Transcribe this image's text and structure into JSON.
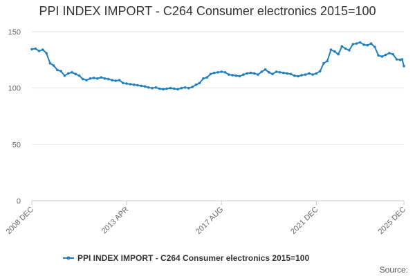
{
  "chart_data": {
    "type": "line",
    "title": "PPI INDEX IMPORT - C264 Consumer electronics 2015=100",
    "xlabel": "",
    "ylabel": "",
    "ylim": [
      0,
      150
    ],
    "y_ticks": [
      0,
      50,
      100,
      150
    ],
    "x_tick_labels": [
      "2008 DEC",
      "2013 APR",
      "2017 AUG",
      "2021 DEC",
      "2025 DEC"
    ],
    "x_tick_dates": [
      "2008-12",
      "2013-04",
      "2017-08",
      "2021-12",
      "2025-12"
    ],
    "grid": true,
    "legend_position": "bottom",
    "color": "#1f7fbf",
    "series": [
      {
        "name": "PPI INDEX IMPORT - C264 Consumer electronics 2015=100",
        "points": [
          [
            "2008-12",
            134.5
          ],
          [
            "2009-02",
            135.0
          ],
          [
            "2009-04",
            133.0
          ],
          [
            "2009-06",
            134.0
          ],
          [
            "2009-08",
            131.0
          ],
          [
            "2009-10",
            122.0
          ],
          [
            "2009-12",
            120.0
          ],
          [
            "2010-02",
            116.0
          ],
          [
            "2010-04",
            115.0
          ],
          [
            "2010-06",
            111.0
          ],
          [
            "2010-08",
            113.0
          ],
          [
            "2010-10",
            114.0
          ],
          [
            "2010-12",
            112.5
          ],
          [
            "2011-02",
            111.0
          ],
          [
            "2011-04",
            108.0
          ],
          [
            "2011-06",
            107.0
          ],
          [
            "2011-08",
            108.5
          ],
          [
            "2011-10",
            109.0
          ],
          [
            "2011-12",
            108.5
          ],
          [
            "2012-02",
            109.5
          ],
          [
            "2012-04",
            108.5
          ],
          [
            "2012-06",
            108.0
          ],
          [
            "2012-08",
            107.0
          ],
          [
            "2012-10",
            106.5
          ],
          [
            "2012-12",
            107.0
          ],
          [
            "2013-02",
            104.5
          ],
          [
            "2013-04",
            104.0
          ],
          [
            "2013-06",
            103.5
          ],
          [
            "2013-08",
            103.0
          ],
          [
            "2013-10",
            102.5
          ],
          [
            "2013-12",
            102.0
          ],
          [
            "2014-02",
            101.5
          ],
          [
            "2014-04",
            100.5
          ],
          [
            "2014-06",
            100.0
          ],
          [
            "2014-08",
            100.5
          ],
          [
            "2014-10",
            99.5
          ],
          [
            "2014-12",
            99.0
          ],
          [
            "2015-02",
            99.5
          ],
          [
            "2015-04",
            100.0
          ],
          [
            "2015-06",
            99.5
          ],
          [
            "2015-08",
            99.0
          ],
          [
            "2015-10",
            100.0
          ],
          [
            "2015-12",
            100.5
          ],
          [
            "2016-02",
            100.0
          ],
          [
            "2016-04",
            101.0
          ],
          [
            "2016-06",
            103.0
          ],
          [
            "2016-08",
            104.5
          ],
          [
            "2016-10",
            108.5
          ],
          [
            "2016-12",
            109.5
          ],
          [
            "2017-02",
            112.5
          ],
          [
            "2017-04",
            113.5
          ],
          [
            "2017-06",
            114.0
          ],
          [
            "2017-08",
            114.5
          ],
          [
            "2017-10",
            114.0
          ],
          [
            "2017-12",
            112.0
          ],
          [
            "2018-02",
            111.5
          ],
          [
            "2018-04",
            111.0
          ],
          [
            "2018-06",
            110.5
          ],
          [
            "2018-08",
            112.0
          ],
          [
            "2018-10",
            113.0
          ],
          [
            "2018-12",
            113.5
          ],
          [
            "2019-02",
            113.0
          ],
          [
            "2019-04",
            112.0
          ],
          [
            "2019-06",
            114.5
          ],
          [
            "2019-08",
            116.5
          ],
          [
            "2019-10",
            114.0
          ],
          [
            "2019-12",
            112.5
          ],
          [
            "2020-02",
            114.5
          ],
          [
            "2020-04",
            114.0
          ],
          [
            "2020-06",
            113.5
          ],
          [
            "2020-08",
            113.0
          ],
          [
            "2020-10",
            112.5
          ],
          [
            "2020-12",
            111.0
          ],
          [
            "2021-02",
            110.5
          ],
          [
            "2021-04",
            111.5
          ],
          [
            "2021-06",
            112.0
          ],
          [
            "2021-08",
            113.0
          ],
          [
            "2021-10",
            112.0
          ],
          [
            "2021-12",
            113.0
          ],
          [
            "2022-02",
            115.0
          ],
          [
            "2022-04",
            122.0
          ],
          [
            "2022-06",
            124.0
          ],
          [
            "2022-08",
            134.0
          ],
          [
            "2022-10",
            132.5
          ],
          [
            "2022-12",
            130.0
          ],
          [
            "2023-02",
            137.0
          ],
          [
            "2023-04",
            135.0
          ],
          [
            "2023-06",
            133.5
          ],
          [
            "2023-08",
            139.0
          ],
          [
            "2023-10",
            139.5
          ],
          [
            "2023-12",
            140.5
          ],
          [
            "2024-02",
            138.5
          ],
          [
            "2024-04",
            138.0
          ],
          [
            "2024-06",
            139.5
          ],
          [
            "2024-08",
            136.5
          ],
          [
            "2024-10",
            129.0
          ],
          [
            "2024-12",
            128.0
          ],
          [
            "2025-02",
            129.5
          ],
          [
            "2025-04",
            131.0
          ],
          [
            "2025-06",
            130.0
          ],
          [
            "2025-08",
            125.5
          ],
          [
            "2025-10",
            125.0
          ],
          [
            "2025-11",
            125.5
          ],
          [
            "2025-12",
            119.5
          ]
        ]
      }
    ]
  },
  "legend": {
    "label": "PPI INDEX IMPORT - C264 Consumer electronics 2015=100"
  },
  "source": {
    "label": "Source:"
  }
}
